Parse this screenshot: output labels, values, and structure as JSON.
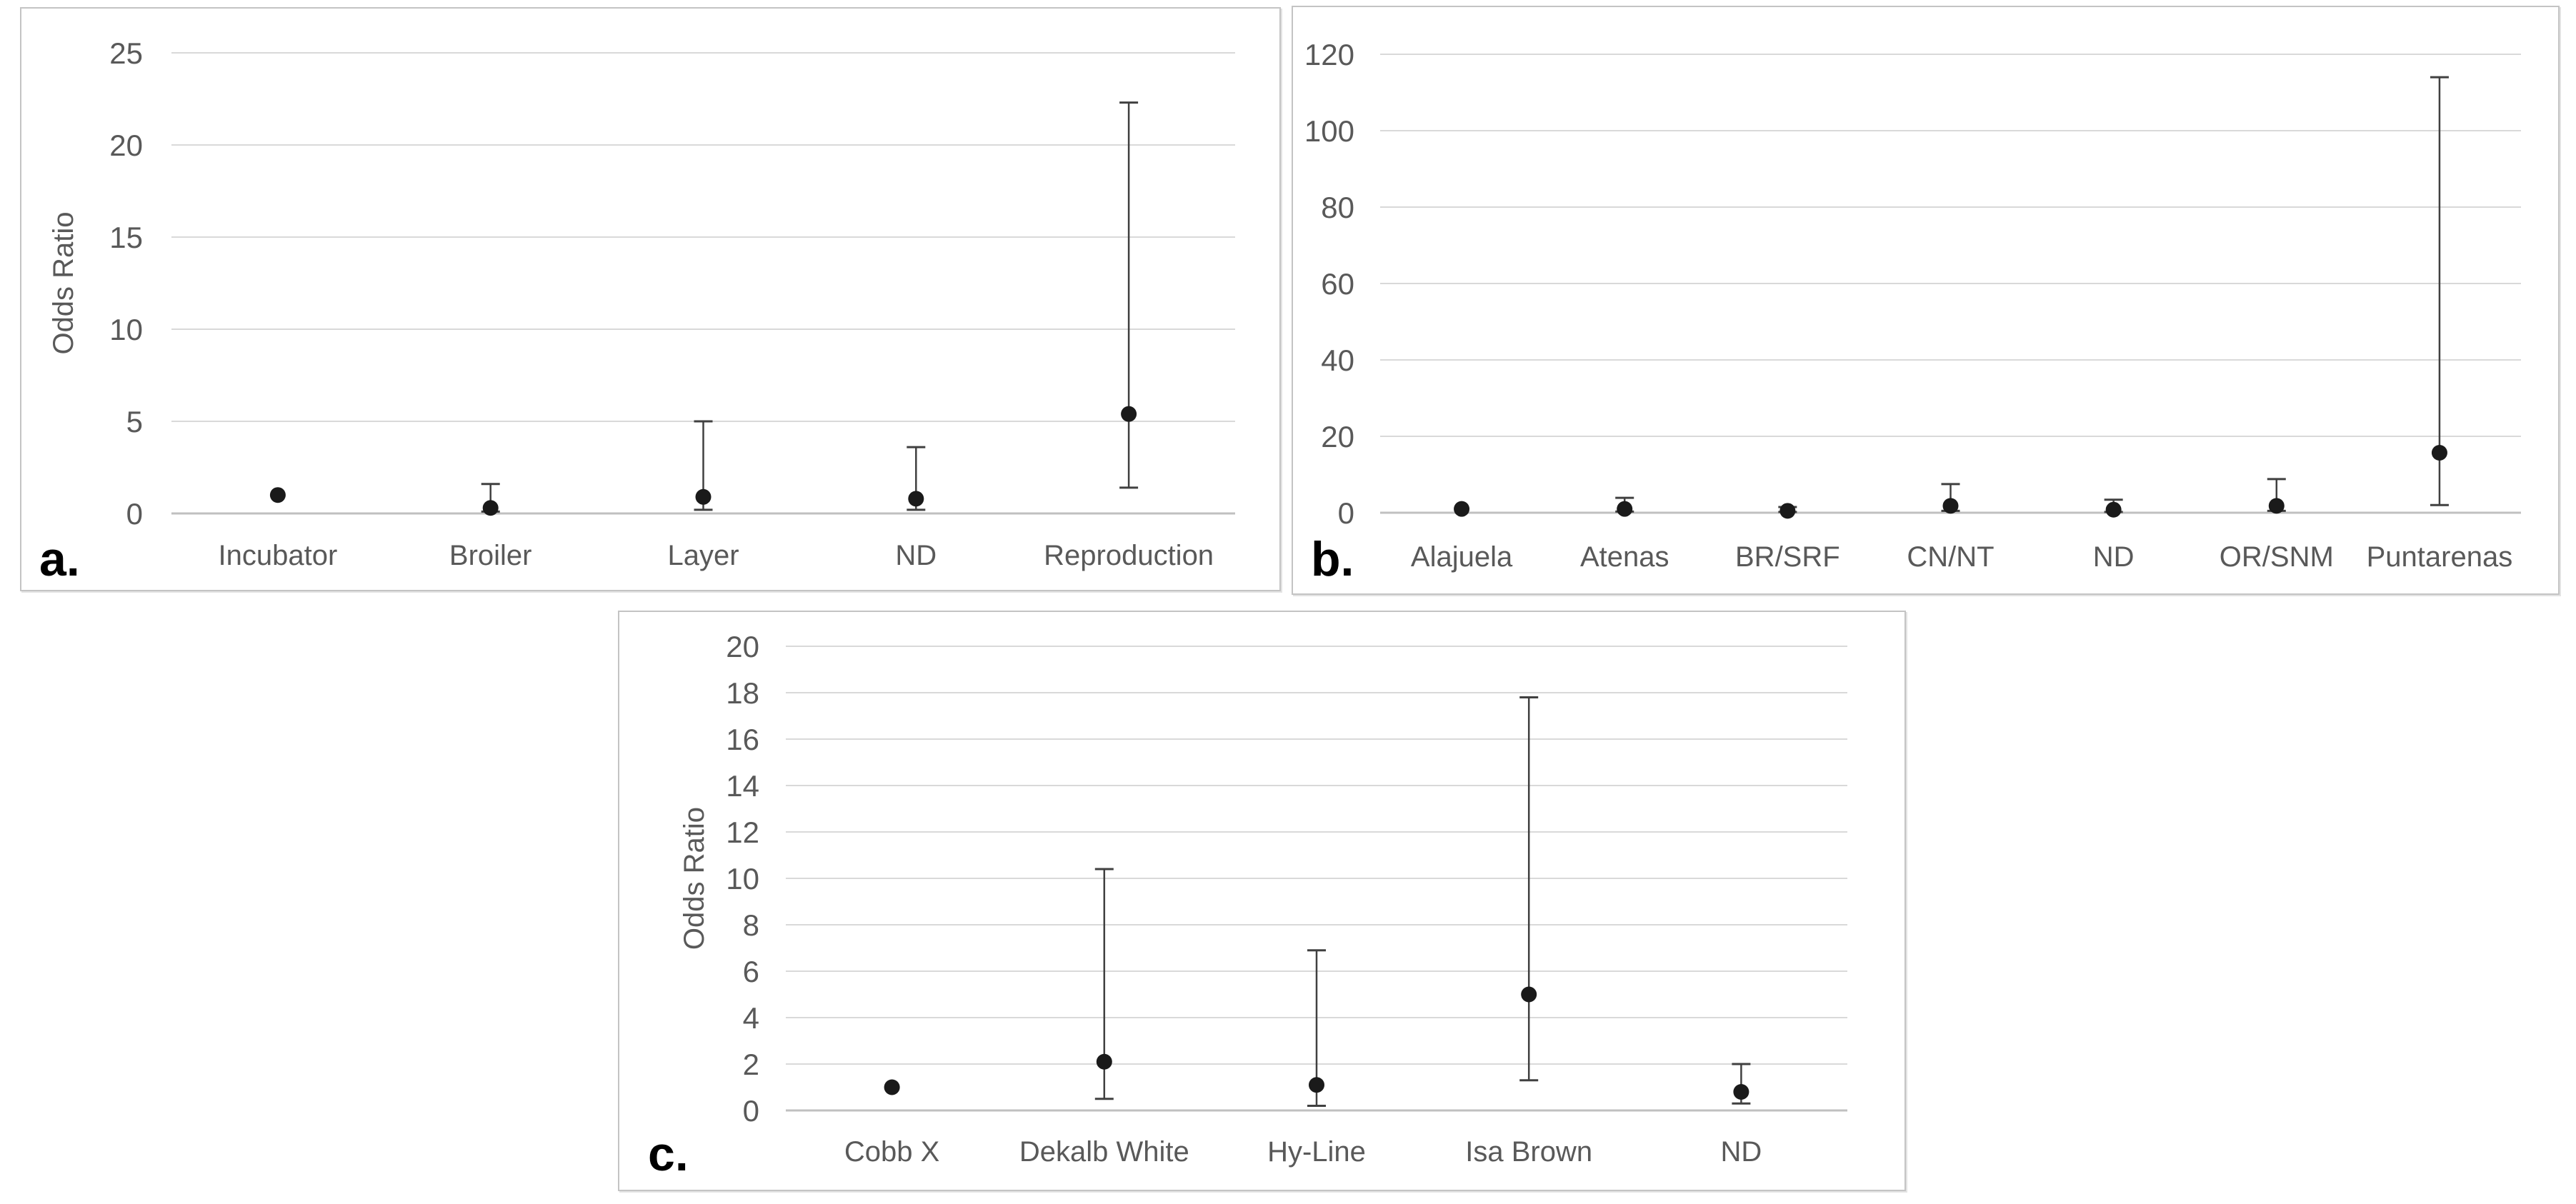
{
  "page": {
    "background": "#ffffff"
  },
  "colors": {
    "marker": "#1a1a1a",
    "error_bar": "#404040",
    "gridline": "#d9d9d9",
    "zero_line": "#c0c0c0",
    "tick_text": "#595959",
    "category_text": "#595959",
    "axis_title_text": "#595959",
    "panel_border": "#c4c4c4",
    "panel_label_text": "#000000"
  },
  "chart_data": [
    {
      "panel": "a",
      "panel_label": "a.",
      "type": "scatter",
      "marker": "filled-circle",
      "error_bars": true,
      "grid": true,
      "legend": false,
      "title": "",
      "xlabel": "",
      "ylabel": "Odds Ratio",
      "ylim": [
        0,
        25
      ],
      "ytick_step": 5,
      "yticks": [
        "0",
        "5",
        "10",
        "15",
        "20",
        "25"
      ],
      "categories": [
        "Incubator",
        "Broiler",
        "Layer",
        "ND",
        "Reproduction"
      ],
      "points": [
        {
          "category": "Incubator",
          "or": 1.0,
          "ci_low": null,
          "ci_high": null
        },
        {
          "category": "Broiler",
          "or": 0.3,
          "ci_low": 0.1,
          "ci_high": 1.6
        },
        {
          "category": "Layer",
          "or": 0.9,
          "ci_low": 0.2,
          "ci_high": 5.0
        },
        {
          "category": "ND",
          "or": 0.8,
          "ci_low": 0.2,
          "ci_high": 3.6
        },
        {
          "category": "Reproduction",
          "or": 5.4,
          "ci_low": 1.4,
          "ci_high": 22.3
        }
      ]
    },
    {
      "panel": "b",
      "panel_label": "b.",
      "type": "scatter",
      "marker": "filled-circle",
      "error_bars": true,
      "grid": true,
      "legend": false,
      "title": "",
      "xlabel": "",
      "ylabel": "",
      "ylim": [
        0,
        120
      ],
      "ytick_step": 20,
      "yticks": [
        "0",
        "20",
        "40",
        "60",
        "80",
        "100",
        "120"
      ],
      "categories": [
        "Alajuela",
        "Atenas",
        "BR/SRF",
        "CN/NT",
        "ND",
        "OR/SNM",
        "Puntarenas"
      ],
      "points": [
        {
          "category": "Alajuela",
          "or": 1.0,
          "ci_low": null,
          "ci_high": null
        },
        {
          "category": "Atenas",
          "or": 1.0,
          "ci_low": 0.3,
          "ci_high": 3.9
        },
        {
          "category": "BR/SRF",
          "or": 0.5,
          "ci_low": 0.2,
          "ci_high": 1.5
        },
        {
          "category": "CN/NT",
          "or": 1.8,
          "ci_low": 0.5,
          "ci_high": 7.5
        },
        {
          "category": "ND",
          "or": 0.8,
          "ci_low": 0.2,
          "ci_high": 3.4
        },
        {
          "category": "OR/SNM",
          "or": 1.8,
          "ci_low": 0.5,
          "ci_high": 8.8
        },
        {
          "category": "Puntarenas",
          "or": 15.7,
          "ci_low": 2.0,
          "ci_high": 114.0
        }
      ]
    },
    {
      "panel": "c",
      "panel_label": "c.",
      "type": "scatter",
      "marker": "filled-circle",
      "error_bars": true,
      "grid": true,
      "legend": false,
      "title": "",
      "xlabel": "",
      "ylabel": "Odds Ratio",
      "ylim": [
        0,
        20
      ],
      "ytick_step": 2,
      "yticks": [
        "0",
        "2",
        "4",
        "6",
        "8",
        "10",
        "12",
        "14",
        "16",
        "18",
        "20"
      ],
      "categories": [
        "Cobb X",
        "Dekalb White",
        "Hy-Line",
        "Isa Brown",
        "ND"
      ],
      "points": [
        {
          "category": "Cobb X",
          "or": 1.0,
          "ci_low": null,
          "ci_high": null
        },
        {
          "category": "Dekalb White",
          "or": 2.1,
          "ci_low": 0.5,
          "ci_high": 10.4
        },
        {
          "category": "Hy-Line",
          "or": 1.1,
          "ci_low": 0.2,
          "ci_high": 6.9
        },
        {
          "category": "Isa Brown",
          "or": 5.0,
          "ci_low": 1.3,
          "ci_high": 17.8
        },
        {
          "category": "ND",
          "or": 0.8,
          "ci_low": 0.3,
          "ci_high": 2.0
        }
      ]
    }
  ]
}
